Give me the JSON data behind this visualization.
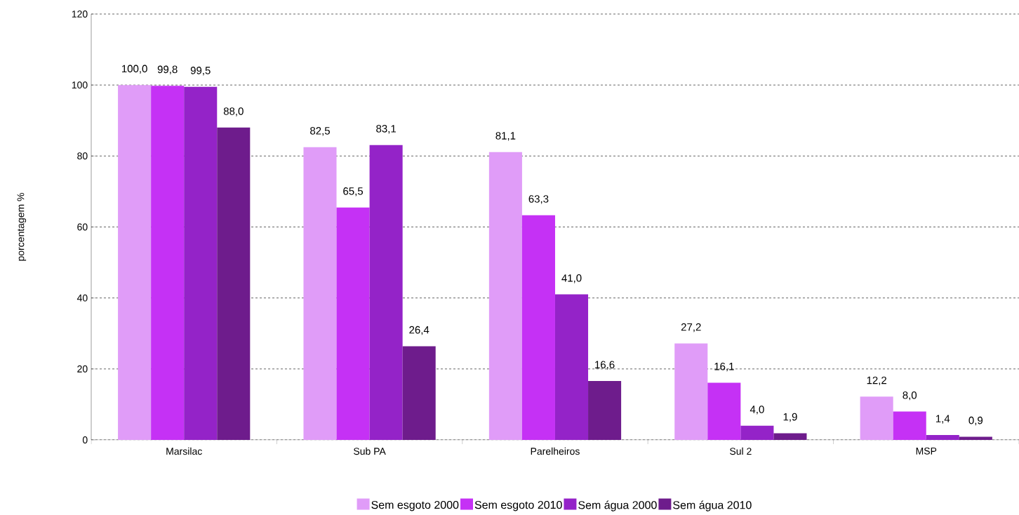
{
  "chart_data": {
    "type": "bar",
    "ylabel": "porcentagem %",
    "categories": [
      "Marsilac",
      "Sub PA",
      "Parelheiros",
      "Sul 2",
      "MSP"
    ],
    "series": [
      {
        "name": "Sem esgoto 2000",
        "color": "#e09cf8",
        "values": [
          100.0,
          82.5,
          81.1,
          27.2,
          12.2
        ],
        "value_labels": [
          "100,0",
          "82,5",
          "81,1",
          "27,2",
          "12,2"
        ]
      },
      {
        "name": "Sem esgoto 2010",
        "color": "#c531f5",
        "values": [
          99.8,
          65.5,
          63.3,
          16.1,
          8.0
        ],
        "value_labels": [
          "99,8",
          "65,5",
          "63,3",
          "16,1",
          "8,0"
        ]
      },
      {
        "name": "Sem água 2000",
        "color": "#9423c8",
        "values": [
          99.5,
          83.1,
          41.0,
          4.0,
          1.4
        ],
        "value_labels": [
          "99,5",
          "83,1",
          "41,0",
          "4,0",
          "1,4"
        ]
      },
      {
        "name": "Sem água 2010",
        "color": "#6e1c8c",
        "values": [
          88.0,
          26.4,
          16.6,
          1.9,
          0.9
        ],
        "value_labels": [
          "88,0",
          "26,4",
          "16,6",
          "1,9",
          "0,9"
        ]
      }
    ],
    "ylim": [
      0,
      120
    ],
    "yticks": [
      0,
      20,
      40,
      60,
      80,
      100,
      120
    ],
    "grid": "y",
    "legend": "bottom"
  }
}
